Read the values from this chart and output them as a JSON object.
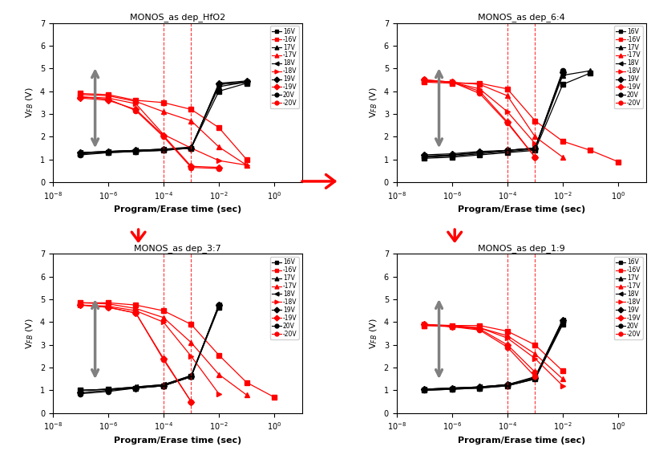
{
  "titles": [
    "MONOS_as dep_HfO2",
    "MONOS_as dep_6:4",
    "MONOS_as dep_3:7",
    "MONOS_as dep_1:9"
  ],
  "vlines": [
    0.0001,
    0.001
  ],
  "xlim": [
    1e-08,
    10.0
  ],
  "ylim": [
    0,
    7
  ],
  "yticks": [
    0,
    1,
    2,
    3,
    4,
    5,
    6,
    7
  ],
  "xlabel": "Program/Erase time (sec)",
  "ylabel": "V$_{FB}$ (V)",
  "legend_labels": [
    "16V",
    "-16V",
    "17V",
    "-17V",
    "18V",
    "-18V",
    "19V",
    "-19V",
    "20V",
    "-20V"
  ],
  "plots": [
    {
      "title": "MONOS_as dep_HfO2",
      "series": [
        {
          "label": "16V",
          "color": "black",
          "marker": "s",
          "x": [
            1e-07,
            1e-06,
            1e-05,
            0.0001,
            0.001,
            0.01,
            0.1
          ],
          "y": [
            1.25,
            1.3,
            1.35,
            1.4,
            1.5,
            4.0,
            4.35
          ]
        },
        {
          "label": "-16V",
          "color": "red",
          "marker": "s",
          "x": [
            1e-07,
            1e-06,
            1e-05,
            0.0001,
            0.001,
            0.01,
            0.1
          ],
          "y": [
            3.9,
            3.85,
            3.6,
            3.5,
            3.2,
            2.4,
            1.0
          ]
        },
        {
          "label": "17V",
          "color": "black",
          "marker": "^",
          "x": [
            1e-07,
            1e-06,
            1e-05,
            0.0001,
            0.001,
            0.01,
            0.1
          ],
          "y": [
            1.3,
            1.35,
            1.4,
            1.45,
            1.55,
            4.2,
            4.4
          ]
        },
        {
          "label": "-17V",
          "color": "red",
          "marker": "^",
          "x": [
            1e-07,
            1e-06,
            1e-05,
            0.0001,
            0.001,
            0.01,
            0.1
          ],
          "y": [
            3.85,
            3.8,
            3.55,
            3.1,
            2.7,
            1.55,
            0.75
          ]
        },
        {
          "label": "18V",
          "color": "black",
          "marker": "<",
          "x": [
            1e-07,
            1e-06,
            1e-05,
            0.0001,
            0.001,
            0.01,
            0.1
          ],
          "y": [
            1.3,
            1.35,
            1.4,
            1.45,
            1.5,
            4.3,
            4.4
          ]
        },
        {
          "label": "-18V",
          "color": "red",
          "marker": ">",
          "x": [
            1e-07,
            1e-06,
            1e-05,
            0.0001,
            0.001,
            0.01,
            0.1
          ],
          "y": [
            3.75,
            3.7,
            3.45,
            2.1,
            1.5,
            0.95,
            0.75
          ]
        },
        {
          "label": "19V",
          "color": "black",
          "marker": "D",
          "x": [
            1e-07,
            1e-06,
            1e-05,
            0.0001,
            0.001,
            0.01,
            0.1
          ],
          "y": [
            1.3,
            1.35,
            1.4,
            1.45,
            1.5,
            4.35,
            4.45
          ]
        },
        {
          "label": "-19V",
          "color": "red",
          "marker": "D",
          "x": [
            1e-07,
            1e-06,
            1e-05,
            0.0001,
            0.001,
            0.01
          ],
          "y": [
            3.7,
            3.6,
            3.2,
            2.05,
            0.7,
            0.65
          ]
        },
        {
          "label": "20V",
          "color": "black",
          "marker": "o",
          "x": [
            1e-07,
            1e-06,
            1e-05,
            0.0001,
            0.001,
            0.01,
            0.1
          ],
          "y": [
            1.2,
            1.3,
            1.35,
            1.4,
            1.5,
            4.3,
            4.4
          ]
        },
        {
          "label": "-20V",
          "color": "red",
          "marker": "o",
          "x": [
            1e-07,
            1e-06,
            1e-05,
            0.0001,
            0.001,
            0.01
          ],
          "y": [
            3.75,
            3.65,
            3.15,
            2.0,
            0.65,
            0.6
          ]
        }
      ]
    },
    {
      "title": "MONOS_as dep_6:4",
      "series": [
        {
          "label": "16V",
          "color": "black",
          "marker": "s",
          "x": [
            1e-07,
            1e-06,
            1e-05,
            0.0001,
            0.001,
            0.01,
            0.1
          ],
          "y": [
            1.05,
            1.1,
            1.2,
            1.3,
            1.4,
            4.3,
            4.8
          ]
        },
        {
          "label": "-16V",
          "color": "red",
          "marker": "s",
          "x": [
            1e-07,
            1e-06,
            1e-05,
            0.0001,
            0.001,
            0.01,
            0.1,
            1.0
          ],
          "y": [
            4.4,
            4.35,
            4.35,
            4.1,
            2.7,
            1.8,
            1.4,
            0.9
          ]
        },
        {
          "label": "17V",
          "color": "black",
          "marker": "^",
          "x": [
            1e-07,
            1e-06,
            1e-05,
            0.0001,
            0.001,
            0.01,
            0.1
          ],
          "y": [
            1.1,
            1.15,
            1.25,
            1.35,
            1.45,
            4.7,
            4.9
          ]
        },
        {
          "label": "-17V",
          "color": "red",
          "marker": "^",
          "x": [
            1e-07,
            1e-06,
            1e-05,
            0.0001,
            0.001,
            0.01
          ],
          "y": [
            4.45,
            4.4,
            4.3,
            3.8,
            2.0,
            1.1
          ]
        },
        {
          "label": "18V",
          "color": "black",
          "marker": "<",
          "x": [
            1e-07,
            1e-06,
            1e-05,
            0.0001,
            0.001,
            0.01
          ],
          "y": [
            1.15,
            1.2,
            1.3,
            1.4,
            1.5,
            4.8
          ]
        },
        {
          "label": "-18V",
          "color": "red",
          "marker": ">",
          "x": [
            1e-07,
            1e-06,
            1e-05,
            0.0001,
            0.001
          ],
          "y": [
            4.45,
            4.4,
            4.1,
            3.1,
            1.7
          ]
        },
        {
          "label": "19V",
          "color": "black",
          "marker": "D",
          "x": [
            1e-07,
            1e-06,
            1e-05,
            0.0001,
            0.001,
            0.01
          ],
          "y": [
            1.2,
            1.25,
            1.35,
            1.4,
            1.5,
            4.85
          ]
        },
        {
          "label": "-19V",
          "color": "red",
          "marker": "D",
          "x": [
            1e-07,
            1e-06,
            1e-05,
            0.0001,
            0.001
          ],
          "y": [
            4.5,
            4.4,
            4.0,
            2.65,
            1.1
          ]
        },
        {
          "label": "20V",
          "color": "black",
          "marker": "o",
          "x": [
            1e-07,
            1e-06,
            1e-05,
            0.0001,
            0.001,
            0.01
          ],
          "y": [
            1.1,
            1.2,
            1.3,
            1.4,
            1.5,
            4.9
          ]
        },
        {
          "label": "-20V",
          "color": "red",
          "marker": "o",
          "x": [
            1e-07,
            1e-06,
            1e-05,
            0.0001,
            0.001
          ],
          "y": [
            4.5,
            4.4,
            3.9,
            2.6,
            1.1
          ]
        }
      ]
    },
    {
      "title": "MONOS_as dep_3:7",
      "series": [
        {
          "label": "16V",
          "color": "black",
          "marker": "s",
          "x": [
            1e-07,
            1e-06,
            1e-05,
            0.0001,
            0.001,
            0.01
          ],
          "y": [
            1.0,
            1.05,
            1.1,
            1.2,
            1.6,
            4.65
          ]
        },
        {
          "label": "-16V",
          "color": "red",
          "marker": "s",
          "x": [
            1e-07,
            1e-06,
            1e-05,
            0.0001,
            0.001,
            0.01,
            0.1,
            1.0
          ],
          "y": [
            4.85,
            4.85,
            4.75,
            4.5,
            3.9,
            2.55,
            1.35,
            0.7
          ]
        },
        {
          "label": "17V",
          "color": "black",
          "marker": "^",
          "x": [
            1e-07,
            1e-06,
            1e-05,
            0.0001,
            0.001,
            0.01
          ],
          "y": [
            1.0,
            1.05,
            1.15,
            1.25,
            1.65,
            4.7
          ]
        },
        {
          "label": "-17V",
          "color": "red",
          "marker": "^",
          "x": [
            1e-07,
            1e-06,
            1e-05,
            0.0001,
            0.001,
            0.01,
            0.1
          ],
          "y": [
            4.85,
            4.8,
            4.6,
            4.2,
            3.1,
            1.7,
            0.8
          ]
        },
        {
          "label": "18V",
          "color": "black",
          "marker": "<",
          "x": [
            1e-07,
            1e-06,
            1e-05,
            0.0001,
            0.001,
            0.01
          ],
          "y": [
            1.0,
            1.05,
            1.15,
            1.25,
            1.65,
            4.75
          ]
        },
        {
          "label": "-18V",
          "color": "red",
          "marker": ">",
          "x": [
            1e-07,
            1e-06,
            1e-05,
            0.0001,
            0.001,
            0.01
          ],
          "y": [
            4.75,
            4.7,
            4.5,
            4.0,
            2.5,
            0.85
          ]
        },
        {
          "label": "19V",
          "color": "black",
          "marker": "D",
          "x": [
            1e-07,
            1e-06,
            1e-05,
            0.0001,
            0.001,
            0.01
          ],
          "y": [
            0.9,
            1.0,
            1.1,
            1.2,
            1.6,
            4.75
          ]
        },
        {
          "label": "-19V",
          "color": "red",
          "marker": "D",
          "x": [
            1e-07,
            1e-06,
            1e-05,
            0.0001,
            0.001
          ],
          "y": [
            4.75,
            4.65,
            4.4,
            2.4,
            0.5
          ]
        },
        {
          "label": "20V",
          "color": "black",
          "marker": "o",
          "x": [
            1e-07,
            1e-06,
            1e-05,
            0.0001,
            0.001,
            0.01
          ],
          "y": [
            0.85,
            0.95,
            1.1,
            1.2,
            1.6,
            4.75
          ]
        },
        {
          "label": "-20V",
          "color": "red",
          "marker": "o",
          "x": [
            1e-07,
            1e-06,
            1e-05,
            0.0001,
            0.001
          ],
          "y": [
            4.75,
            4.65,
            4.4,
            2.35,
            0.5
          ]
        }
      ]
    },
    {
      "title": "MONOS_as dep_1:9",
      "series": [
        {
          "label": "16V",
          "color": "black",
          "marker": "s",
          "x": [
            1e-07,
            1e-06,
            1e-05,
            0.0001,
            0.001,
            0.01
          ],
          "y": [
            1.0,
            1.05,
            1.1,
            1.2,
            1.5,
            3.9
          ]
        },
        {
          "label": "-16V",
          "color": "red",
          "marker": "s",
          "x": [
            1e-07,
            1e-06,
            1e-05,
            0.0001,
            0.001,
            0.01
          ],
          "y": [
            3.85,
            3.85,
            3.85,
            3.6,
            3.0,
            1.85
          ]
        },
        {
          "label": "17V",
          "color": "black",
          "marker": "^",
          "x": [
            1e-07,
            1e-06,
            1e-05,
            0.0001,
            0.001,
            0.01
          ],
          "y": [
            1.05,
            1.1,
            1.15,
            1.25,
            1.55,
            4.0
          ]
        },
        {
          "label": "-17V",
          "color": "red",
          "marker": "^",
          "x": [
            1e-07,
            1e-06,
            1e-05,
            0.0001,
            0.001,
            0.01
          ],
          "y": [
            3.85,
            3.8,
            3.75,
            3.4,
            2.6,
            1.5
          ]
        },
        {
          "label": "18V",
          "color": "black",
          "marker": "<",
          "x": [
            1e-07,
            1e-06,
            1e-05,
            0.0001,
            0.001,
            0.01
          ],
          "y": [
            1.05,
            1.1,
            1.15,
            1.25,
            1.6,
            4.1
          ]
        },
        {
          "label": "-18V",
          "color": "red",
          "marker": ">",
          "x": [
            1e-07,
            1e-06,
            1e-05,
            0.0001,
            0.001,
            0.01
          ],
          "y": [
            3.9,
            3.85,
            3.75,
            3.3,
            2.4,
            1.2
          ]
        },
        {
          "label": "19V",
          "color": "black",
          "marker": "D",
          "x": [
            1e-07,
            1e-06,
            1e-05,
            0.0001,
            0.001,
            0.01
          ],
          "y": [
            1.05,
            1.1,
            1.15,
            1.25,
            1.55,
            4.1
          ]
        },
        {
          "label": "-19V",
          "color": "red",
          "marker": "D",
          "x": [
            1e-07,
            1e-06,
            1e-05,
            0.0001,
            0.001
          ],
          "y": [
            3.9,
            3.8,
            3.7,
            3.0,
            1.8
          ]
        },
        {
          "label": "20V",
          "color": "black",
          "marker": "o",
          "x": [
            1e-07,
            1e-06,
            1e-05,
            0.0001,
            0.001,
            0.01
          ],
          "y": [
            1.0,
            1.05,
            1.1,
            1.2,
            1.5,
            4.0
          ]
        },
        {
          "label": "-20V",
          "color": "red",
          "marker": "o",
          "x": [
            1e-07,
            1e-06,
            1e-05,
            0.0001,
            0.001
          ],
          "y": [
            3.9,
            3.8,
            3.65,
            2.9,
            1.6
          ]
        }
      ]
    }
  ]
}
